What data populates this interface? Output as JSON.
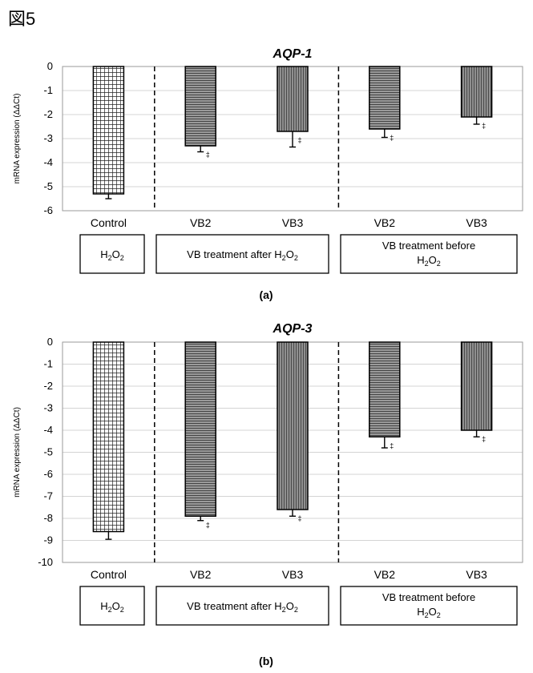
{
  "figure_label": "図5",
  "chart_data": [
    {
      "type": "bar",
      "title": "AQP-1",
      "ylabel": "mRNA expression (ΔΔCt)",
      "ylim": [
        -6,
        0
      ],
      "yticks": [
        0,
        -1,
        -2,
        -3,
        -4,
        -5,
        -6
      ],
      "categories": [
        "Control",
        "VB2",
        "VB3",
        "VB2",
        "VB3"
      ],
      "values": [
        -5.3,
        -3.3,
        -2.7,
        -2.6,
        -2.1
      ],
      "errors": [
        0.2,
        0.25,
        0.65,
        0.35,
        0.3
      ],
      "markers": [
        "",
        "‡",
        "‡",
        "‡",
        "‡"
      ],
      "groups": [
        {
          "label": "H2O2"
        },
        {
          "label": "VB treatment after H2O2"
        },
        {
          "label": "VB treatment before H2O2"
        }
      ],
      "sublabel": "(a)"
    },
    {
      "type": "bar",
      "title": "AQP-3",
      "ylabel": "mRNA expression (ΔΔCt)",
      "ylim": [
        -10,
        0
      ],
      "yticks": [
        0,
        -1,
        -2,
        -3,
        -4,
        -5,
        -6,
        -7,
        -8,
        -9,
        -10
      ],
      "categories": [
        "Control",
        "VB2",
        "VB3",
        "VB2",
        "VB3"
      ],
      "values": [
        -8.6,
        -7.9,
        -7.6,
        -4.3,
        -4.0
      ],
      "errors": [
        0.35,
        0.2,
        0.3,
        0.5,
        0.3
      ],
      "markers": [
        "",
        "‡",
        "‡",
        "‡",
        "‡"
      ],
      "groups": [
        {
          "label": "H2O2"
        },
        {
          "label": "VB treatment after H2O2"
        },
        {
          "label": "VB treatment before H2O2"
        }
      ],
      "sublabel": "(b)"
    }
  ]
}
